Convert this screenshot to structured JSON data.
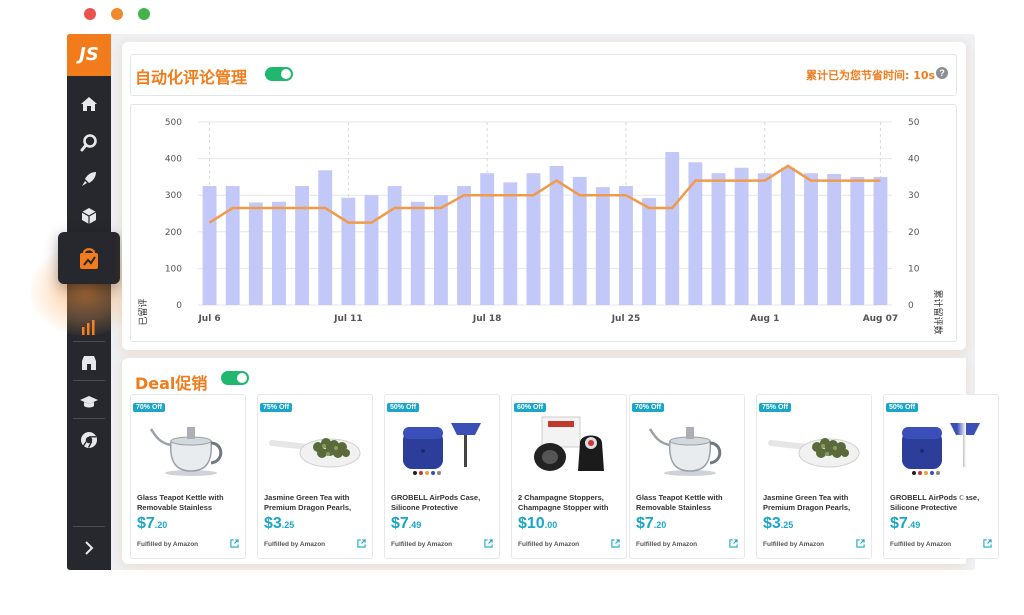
{
  "window_controls": {
    "close_color": "#e9554d",
    "minimize_color": "#ef8a2a",
    "maximize_color": "#46b34a"
  },
  "sidebar": {
    "logo": "JS",
    "items": [
      "home-icon",
      "search-icon",
      "rocket-icon",
      "box-icon",
      "shopping-bag-chart-icon",
      "bar-chart-icon",
      "store-icon",
      "graduation-cap-icon",
      "chrome-icon",
      "chevron-right-icon"
    ],
    "active_index": 4,
    "accent": "#f27c1c"
  },
  "reviews": {
    "title": "自动化评论管理",
    "saved_time_label": "累计已为您节省时间: 10s",
    "help": "?"
  },
  "deals": {
    "title": "Deal促销",
    "products": [
      {
        "badge": "70% Off",
        "name": "Glass Teapot Kettle with Removable Stainless",
        "price_dollars": "$7",
        "price_cents": ".20",
        "fulfilled": "Fulfilled by Amazon",
        "image": "teapot-image"
      },
      {
        "badge": "75% Off",
        "name": "Jasmine Green Tea with Premium Dragon Pearls,",
        "price_dollars": "$3",
        "price_cents": ".25",
        "fulfilled": "Fulfilled by Amazon",
        "image": "tea-spoon-image"
      },
      {
        "badge": "50% Off",
        "name": "GROBELL AirPods Case, Silicone Protective",
        "price_dollars": "$7",
        "price_cents": ".49",
        "fulfilled": "Fulfilled by Amazon",
        "image": "airpods-case-image"
      },
      {
        "badge": "60% Off",
        "name": "2 Champagne Stoppers, Champagne Stopper with",
        "price_dollars": "$10",
        "price_cents": ".00",
        "fulfilled": "Fulfilled by Amazon",
        "image": "champagne-stopper-image"
      },
      {
        "badge": "70% Off",
        "name": "Glass Teapot Kettle with Removable Stainless",
        "price_dollars": "$7",
        "price_cents": ".20",
        "fulfilled": "Fulfilled by Amazon",
        "image": "teapot-image"
      },
      {
        "badge": "75% Off",
        "name": "Jasmine Green Tea with Premium Dragon Pearls,",
        "price_dollars": "$3",
        "price_cents": ".25",
        "fulfilled": "Fulfilled by Amazon",
        "image": "tea-spoon-image"
      },
      {
        "badge": "50% Off",
        "name": "GROBELL AirPods Case, Silicone Protective",
        "price_dollars": "$7",
        "price_cents": ".49",
        "fulfilled": "Fulfilled by Amazon",
        "image": "airpods-case-image"
      }
    ]
  },
  "chart_data": {
    "type": "bar",
    "ylabel": "已留评",
    "y2label": "累计留评数",
    "ylim": [
      0,
      500
    ],
    "y2lim": [
      0,
      50
    ],
    "y_ticks": [
      "500",
      "400",
      "300",
      "200",
      "100",
      "0"
    ],
    "y2_ticks": [
      "50",
      "40",
      "30",
      "20",
      "10",
      "0"
    ],
    "x_tick_labels": [
      "Jul 6",
      "Jul 11",
      "Jul 18",
      "Jul 25",
      "Aug 1",
      "Aug 07"
    ],
    "x_tick_indices": [
      0,
      6,
      12,
      18,
      24,
      29
    ],
    "grid": true,
    "bar_color": "#c2c8f7",
    "line_color": "#f29a4a",
    "series": [
      {
        "type": "bar",
        "axis": "left",
        "values": [
          325,
          325,
          280,
          282,
          325,
          368,
          293,
          300,
          325,
          282,
          300,
          325,
          360,
          335,
          360,
          380,
          350,
          322,
          325,
          292,
          418,
          390,
          360,
          375,
          360,
          375,
          360,
          358,
          350,
          350
        ]
      },
      {
        "type": "line",
        "axis": "right",
        "values": [
          22.5,
          26.5,
          26.5,
          26.5,
          26.5,
          26.5,
          22.5,
          22.5,
          26.5,
          26.5,
          26.5,
          30,
          30,
          30,
          30,
          34,
          30,
          30,
          30,
          26.5,
          26.5,
          34,
          34,
          34,
          34,
          38,
          34,
          34,
          34,
          34
        ]
      }
    ]
  }
}
